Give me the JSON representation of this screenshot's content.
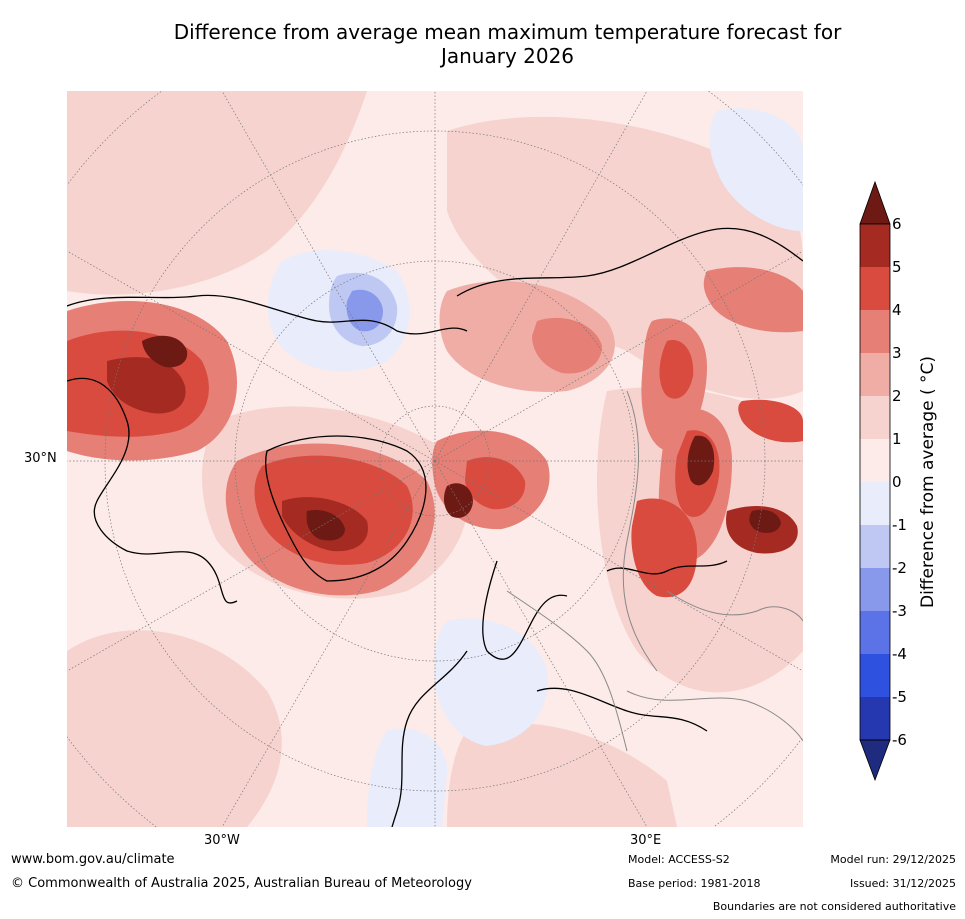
{
  "title_line1": "Difference from average mean maximum temperature forecast for",
  "title_line2": "January 2026",
  "map": {
    "latitude_label": "30°N",
    "longitude_labels": [
      "30°W",
      "30°E"
    ]
  },
  "colorbar": {
    "label": "Difference from average ( °C)",
    "ticks": [
      "6",
      "5",
      "4",
      "3",
      "2",
      "1",
      "0",
      "-1",
      "-2",
      "-3",
      "-4",
      "-5",
      "-6"
    ],
    "colors": {
      "over": "#6e1a14",
      "5_6": "#a52a22",
      "4_5": "#d94b3f",
      "3_4": "#e67f76",
      "2_3": "#efada6",
      "1_2": "#f6d3cf",
      "0_1": "#fcebe8",
      "m1_0": "#e8ecfb",
      "m2_m1": "#bec8f2",
      "m3_m2": "#8898ea",
      "m4_m3": "#5b73e6",
      "m5_m4": "#2f51e0",
      "m6_m5": "#2538b0",
      "under": "#1f2b7e"
    }
  },
  "footer": {
    "url": "www.bom.gov.au/climate",
    "copyright": "© Commonwealth of Australia 2025, Australian Bureau of Meteorology",
    "model": "Model: ACCESS-S2",
    "base_period": "Base period: 1981-2018",
    "model_run": "Model run: 29/12/2025",
    "issued": "Issued: 31/12/2025",
    "disclaimer": "Boundaries are not considered authoritative"
  }
}
